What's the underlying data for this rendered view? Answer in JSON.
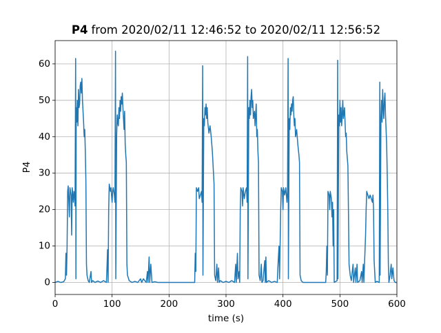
{
  "chart_data": {
    "type": "line",
    "title_parts": [
      "P4",
      "from 2020/02/11 12:46:52 to 2020/02/11 12:56:52"
    ],
    "x_label": "time (s)",
    "y_label": "P4",
    "color": "#1f77b4",
    "grid": true,
    "xlim": [
      0,
      600
    ],
    "ylim": [
      -3.3,
      66.4
    ],
    "xticks": [
      0,
      100,
      200,
      300,
      400,
      500,
      600
    ],
    "yticks": [
      0,
      10,
      20,
      30,
      40,
      50,
      60
    ],
    "x": [
      0,
      5,
      10,
      15,
      18,
      19,
      20,
      21,
      22,
      23,
      25,
      26,
      28,
      29,
      30,
      32,
      33,
      34,
      35,
      36,
      36.5,
      37,
      38,
      39,
      40,
      41,
      42,
      43,
      44,
      45,
      46,
      47,
      48,
      49,
      50,
      51,
      52,
      53,
      54,
      55,
      56,
      58,
      60,
      63,
      64,
      66,
      70,
      75,
      80,
      85,
      90,
      91,
      92,
      93,
      94,
      95,
      97,
      98,
      100,
      101,
      102,
      104,
      105,
      106,
      106.5,
      108,
      109,
      110,
      111,
      112,
      113,
      114,
      115,
      116,
      117,
      118,
      119,
      120,
      121,
      122,
      123,
      124,
      125,
      126,
      127,
      130,
      135,
      140,
      145,
      150,
      152,
      155,
      160,
      162,
      163,
      165,
      166,
      168,
      170,
      175,
      180,
      200,
      220,
      240,
      245,
      246,
      247,
      248,
      250,
      252,
      253,
      255,
      257,
      258,
      259,
      259.5,
      261,
      262,
      263,
      264,
      265,
      266,
      267,
      268,
      270,
      272,
      274,
      276,
      278,
      279,
      280,
      282,
      284,
      285,
      287,
      288,
      290,
      295,
      300,
      305,
      310,
      315,
      317,
      318,
      320,
      321,
      323,
      324,
      325,
      326,
      328,
      329,
      330,
      332,
      334,
      336,
      337,
      338,
      338.5,
      340,
      341,
      342,
      343,
      344,
      345,
      346,
      347,
      348,
      350,
      351,
      353,
      354,
      355,
      356,
      357,
      358,
      360,
      362,
      363,
      365,
      368,
      369,
      370,
      371,
      375,
      380,
      385,
      390,
      391,
      393,
      394,
      396,
      397,
      399,
      400,
      401,
      403,
      405,
      407,
      408,
      409,
      409.5,
      411,
      412,
      413,
      414,
      415,
      416,
      417,
      418,
      419,
      420,
      421,
      422,
      424,
      426,
      428,
      429,
      430,
      432,
      435,
      450,
      465,
      475,
      476,
      477,
      478,
      479,
      481,
      482,
      483,
      485,
      486,
      487,
      488,
      489,
      490,
      495,
      496,
      496.5,
      498,
      499,
      500,
      501,
      502,
      503,
      504,
      505,
      506,
      508,
      510,
      511,
      512,
      514,
      516,
      518,
      520,
      523,
      524,
      527,
      528,
      530,
      531,
      535,
      538,
      539,
      541,
      542,
      545,
      546,
      547,
      549,
      551,
      553,
      555,
      557,
      558,
      559,
      560,
      562,
      565,
      569,
      570,
      570.5,
      572,
      573,
      574,
      575,
      576,
      577,
      578,
      579,
      580,
      581,
      582,
      583,
      584,
      585,
      586,
      588,
      590,
      591,
      593,
      595,
      597,
      600
    ],
    "values": [
      0,
      0.3,
      0,
      0.2,
      1,
      8,
      2,
      10,
      25,
      26.5,
      18,
      26,
      24,
      13,
      26,
      22,
      25,
      24,
      21,
      61.5,
      1,
      48,
      44,
      50,
      43,
      53,
      48,
      49,
      54,
      55,
      52,
      56,
      50,
      47,
      44,
      40,
      42,
      36,
      28,
      5,
      2,
      0.5,
      0,
      3,
      0,
      0.5,
      0,
      0.4,
      0,
      0.5,
      0,
      4,
      9,
      0,
      20,
      27,
      25,
      26,
      22,
      25,
      26,
      24,
      22,
      63.5,
      1,
      40,
      46,
      44,
      43,
      48,
      45,
      50,
      47,
      51,
      49,
      52,
      48,
      45,
      42,
      47,
      38,
      35,
      33,
      5,
      2,
      0.5,
      0,
      0.3,
      0,
      1,
      0,
      1,
      0,
      3,
      0,
      7,
      0,
      5,
      0,
      0.2,
      0,
      0,
      0,
      0,
      0,
      8,
      3,
      26,
      25,
      26,
      23,
      24,
      25,
      22,
      59.5,
      2,
      45,
      43,
      48,
      46,
      49,
      45,
      48,
      44,
      41,
      43,
      40,
      36,
      30,
      27,
      2,
      0.5,
      5,
      0,
      4,
      0,
      0.5,
      0,
      0.3,
      0,
      0.5,
      0,
      5,
      0,
      8,
      1,
      3,
      0,
      20,
      26,
      25,
      21,
      26,
      23,
      25,
      26,
      22,
      62,
      1,
      48,
      45,
      50,
      46,
      51,
      53,
      48,
      50,
      45,
      47,
      43,
      49,
      40,
      42,
      36,
      33,
      2,
      0.5,
      5,
      0,
      0.5,
      6,
      0,
      7,
      0,
      0.5,
      0,
      0.3,
      0,
      4,
      10,
      1,
      20,
      26,
      25,
      20,
      26,
      24,
      26,
      22,
      25,
      61.5,
      1,
      45,
      42,
      48,
      46,
      49,
      47,
      50,
      51,
      46,
      43,
      45,
      40,
      42,
      38,
      35,
      33,
      2,
      0.5,
      0,
      0,
      0,
      0,
      3,
      10,
      2,
      25,
      24,
      20,
      25,
      23,
      18,
      22,
      10,
      20,
      0,
      0.5,
      61,
      1,
      46,
      43,
      50,
      44,
      48,
      43,
      46,
      50,
      45,
      48,
      40,
      41,
      36,
      32,
      5,
      2,
      0.5,
      5,
      0,
      4,
      0,
      5,
      0,
      0.5,
      3,
      0,
      5,
      0,
      13,
      20,
      25,
      24,
      23,
      24,
      23,
      22,
      24,
      20,
      6,
      0,
      0.3,
      0,
      55,
      2,
      45,
      50,
      44,
      53,
      48,
      45,
      50,
      52,
      46,
      42,
      38,
      30,
      20,
      5,
      0,
      2,
      5,
      1,
      4,
      0.5,
      0,
      0
    ]
  }
}
